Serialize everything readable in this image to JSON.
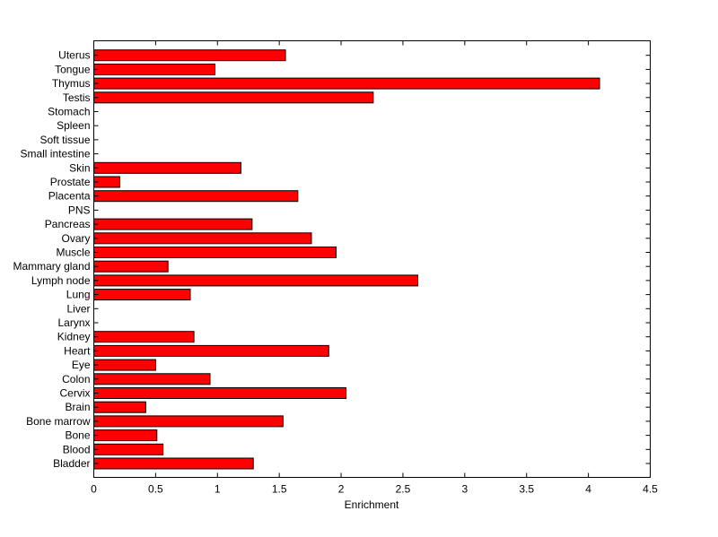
{
  "chart_data": {
    "type": "bar",
    "orientation": "horizontal",
    "title": "",
    "xlabel": "Enrichment",
    "ylabel": "",
    "xlim": [
      0,
      4.5
    ],
    "x_ticks": [
      0,
      0.5,
      1,
      1.5,
      2,
      2.5,
      3,
      3.5,
      4,
      4.5
    ],
    "x_tick_labels": [
      "0",
      "0.5",
      "1",
      "1.5",
      "2",
      "2.5",
      "3",
      "3.5",
      "4",
      "4.5"
    ],
    "grid": false,
    "bar_color": "#ff0000",
    "categories": [
      "Bladder",
      "Blood",
      "Bone",
      "Bone marrow",
      "Brain",
      "Cervix",
      "Colon",
      "Eye",
      "Heart",
      "Kidney",
      "Larynx",
      "Liver",
      "Lung",
      "Lymph node",
      "Mammary gland",
      "Muscle",
      "Ovary",
      "Pancreas",
      "PNS",
      "Placenta",
      "Prostate",
      "Skin",
      "Small intestine",
      "Soft tissue",
      "Spleen",
      "Stomach",
      "Testis",
      "Thymus",
      "Tongue",
      "Uterus"
    ],
    "values": [
      1.29,
      0.56,
      0.51,
      1.53,
      0.42,
      2.04,
      0.94,
      0.5,
      1.9,
      0.81,
      0,
      0,
      0.78,
      2.62,
      0.6,
      1.96,
      1.76,
      1.28,
      0,
      1.65,
      0.21,
      1.19,
      0,
      0,
      0,
      0,
      2.26,
      4.09,
      0.98,
      1.55
    ]
  }
}
